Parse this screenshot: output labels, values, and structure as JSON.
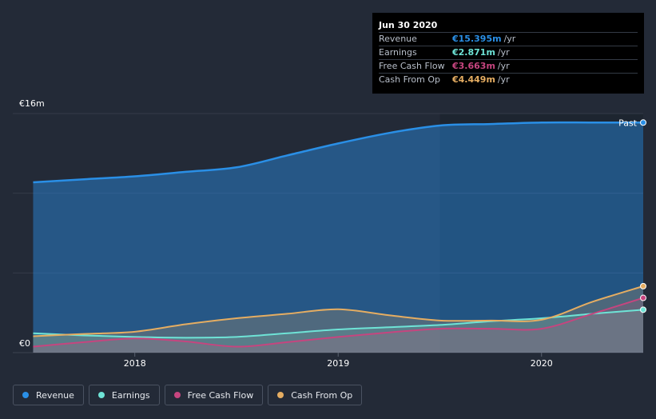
{
  "colors": {
    "revenue": "#2a8fe6",
    "earnings": "#6ee3d6",
    "free_cash_flow": "#c6457f",
    "cash_from_op": "#e5ad62"
  },
  "tooltip": {
    "date": "Jun 30 2020",
    "rows": [
      {
        "name": "Revenue",
        "value": "€15.395m",
        "unit": "/yr"
      },
      {
        "name": "Earnings",
        "value": "€2.871m",
        "unit": "/yr"
      },
      {
        "name": "Free Cash Flow",
        "value": "€3.663m",
        "unit": "/yr"
      },
      {
        "name": "Cash From Op",
        "value": "€4.449m",
        "unit": "/yr"
      }
    ]
  },
  "legend": [
    {
      "label": "Revenue",
      "key": "revenue"
    },
    {
      "label": "Earnings",
      "key": "earnings"
    },
    {
      "label": "Free Cash Flow",
      "key": "free_cash_flow"
    },
    {
      "label": "Cash From Op",
      "key": "cash_from_op"
    }
  ],
  "chart_data": {
    "type": "area",
    "ylim": [
      0,
      16
    ],
    "y_tick_labels": [
      {
        "value": 16,
        "label": "€16m"
      },
      {
        "value": 0,
        "label": "€0"
      }
    ],
    "x_tick_labels": [
      {
        "value": 2018.0,
        "label": "2018"
      },
      {
        "value": 2019.0,
        "label": "2019"
      },
      {
        "value": 2020.0,
        "label": "2020"
      }
    ],
    "xlim": [
      2017.4,
      2020.5
    ],
    "past_start": 2019.5,
    "past_label": "Past",
    "series": [
      {
        "name": "Revenue",
        "key": "revenue",
        "x": [
          2017.5,
          2017.75,
          2018.0,
          2018.25,
          2018.5,
          2018.75,
          2019.0,
          2019.25,
          2019.5,
          2019.75,
          2020.0,
          2020.25,
          2020.5
        ],
        "y": [
          11.4,
          11.6,
          11.8,
          12.1,
          12.4,
          13.2,
          14.0,
          14.7,
          15.2,
          15.3,
          15.4,
          15.4,
          15.395
        ]
      },
      {
        "name": "Earnings",
        "key": "earnings",
        "x": [
          2017.5,
          2017.75,
          2018.0,
          2018.25,
          2018.5,
          2018.75,
          2019.0,
          2019.25,
          2019.5,
          2019.75,
          2020.0,
          2020.25,
          2020.5
        ],
        "y": [
          1.3,
          1.15,
          1.05,
          1.0,
          1.05,
          1.3,
          1.55,
          1.7,
          1.85,
          2.1,
          2.3,
          2.6,
          2.871
        ]
      },
      {
        "name": "Free Cash Flow",
        "key": "free_cash_flow",
        "x": [
          2017.5,
          2017.75,
          2018.0,
          2018.25,
          2018.5,
          2018.75,
          2019.0,
          2019.25,
          2019.5,
          2019.75,
          2020.0,
          2020.25,
          2020.5
        ],
        "y": [
          0.4,
          0.7,
          0.95,
          0.75,
          0.4,
          0.7,
          1.05,
          1.35,
          1.6,
          1.6,
          1.6,
          2.6,
          3.663
        ]
      },
      {
        "name": "Cash From Op",
        "key": "cash_from_op",
        "x": [
          2017.5,
          2017.75,
          2018.0,
          2018.25,
          2018.5,
          2018.75,
          2019.0,
          2019.25,
          2019.5,
          2019.75,
          2020.0,
          2020.25,
          2020.5
        ],
        "y": [
          1.1,
          1.25,
          1.4,
          1.9,
          2.3,
          2.6,
          2.9,
          2.5,
          2.15,
          2.15,
          2.2,
          3.4,
          4.449
        ]
      }
    ]
  }
}
